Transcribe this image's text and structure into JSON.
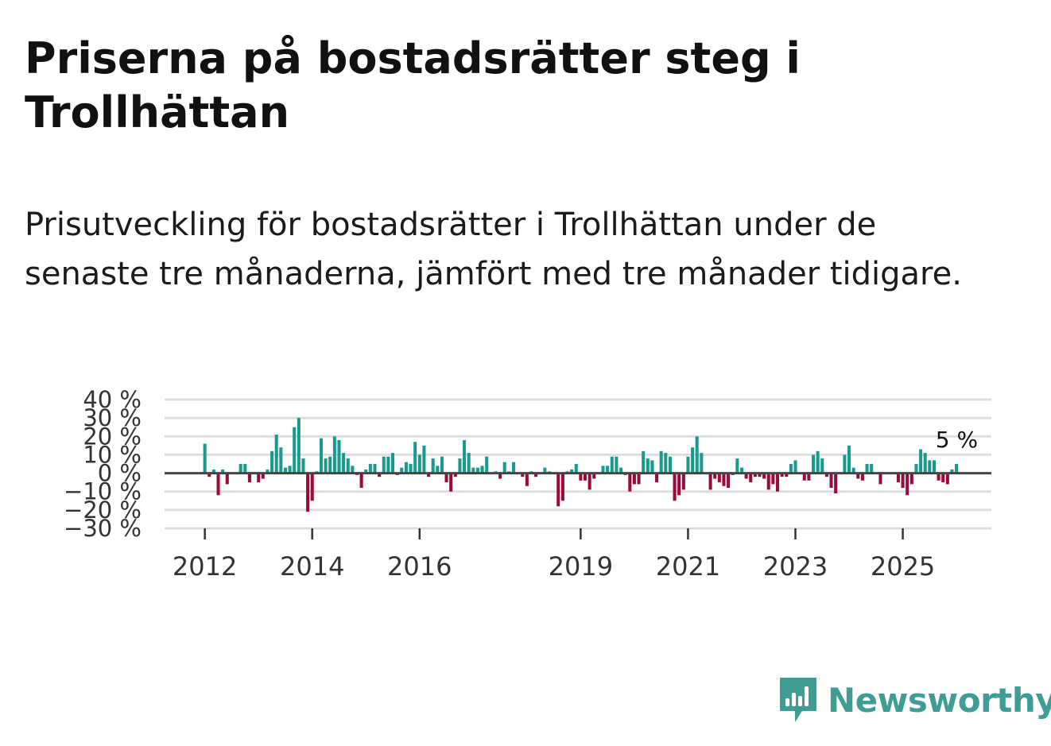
{
  "title": "Priserna på bostadsrätter steg i Trollhättan",
  "subtitle": "Prisutveckling för bostadsrätter i Trollhättan under de senaste tre månaderna, jämfört med tre månader tidigare.",
  "brand": "Newsworthy",
  "colors": {
    "positive": "#1a9a8e",
    "negative": "#9b0a3e",
    "zero_line": "#444444",
    "grid": "#dddddd",
    "brand": "#3f9d96"
  },
  "chart_data": {
    "type": "bar",
    "title": "Priserna på bostadsrätter steg i Trollhättan",
    "xlabel": "",
    "ylabel": "",
    "ylim": [
      -30,
      40
    ],
    "y_ticks": [
      40,
      30,
      20,
      10,
      0,
      -10,
      -20,
      -30
    ],
    "y_tick_labels": [
      "40 %",
      "30 %",
      "20 %",
      "10 %",
      "0 %",
      "−10 %",
      "−20 %",
      "−30 %"
    ],
    "x_ticks": [
      "2012",
      "2014",
      "2016",
      "2019",
      "2021",
      "2023",
      "2025"
    ],
    "x_tick_positions": [
      2012.0,
      2014.0,
      2016.0,
      2019.0,
      2021.0,
      2023.0,
      2025.0
    ],
    "x_range": [
      2011.25,
      2026.65
    ],
    "start_month": "2012-01",
    "unit": "%",
    "last_label": "5 %",
    "values": [
      16,
      -2,
      2,
      -12,
      2,
      -6,
      0,
      0,
      5,
      5,
      -5,
      0,
      -5,
      -3,
      2,
      12,
      21,
      14,
      3,
      4,
      25,
      30,
      8,
      -21,
      -15,
      1,
      19,
      8,
      9,
      20,
      18,
      11,
      8,
      4,
      -1,
      -8,
      2,
      5,
      5,
      -2,
      9,
      9,
      11,
      -1,
      3,
      6,
      5,
      17,
      10,
      15,
      -2,
      8,
      4,
      9,
      -5,
      -10,
      -2,
      8,
      18,
      11,
      3,
      3,
      4,
      9,
      0,
      1,
      -3,
      6,
      1,
      6,
      0,
      -2,
      -7,
      1,
      -2,
      0,
      3,
      1,
      0,
      -18,
      -15,
      1,
      2,
      5,
      -4,
      -4,
      -9,
      -3,
      0,
      4,
      4,
      9,
      9,
      3,
      -1,
      -10,
      -6,
      -6,
      12,
      8,
      7,
      -5,
      12,
      11,
      9,
      -15,
      -12,
      -9,
      9,
      14,
      20,
      11,
      0,
      -9,
      -3,
      -5,
      -7,
      -8,
      -1,
      8,
      3,
      -3,
      -5,
      -2,
      -2,
      -3,
      -9,
      -6,
      -10,
      -2,
      -2,
      5,
      7,
      0,
      -4,
      -4,
      10,
      12,
      8,
      -2,
      -8,
      -11,
      0,
      10,
      15,
      3,
      -3,
      -4,
      5,
      5,
      0,
      -6,
      0,
      0,
      0,
      -5,
      -8,
      -12,
      -6,
      5,
      13,
      11,
      7,
      7,
      -4,
      -5,
      -6,
      2,
      5
    ],
    "grid": true
  }
}
